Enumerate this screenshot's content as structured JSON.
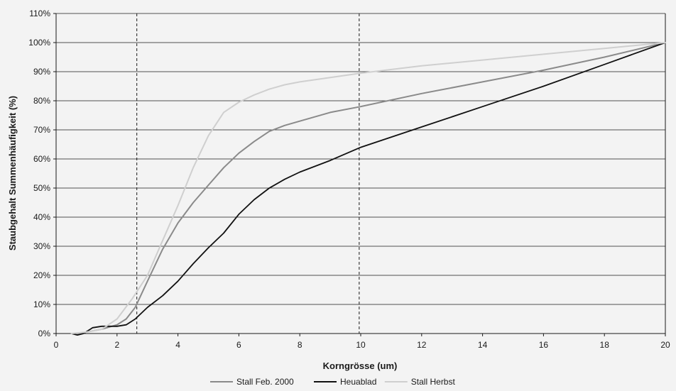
{
  "chart_data": {
    "type": "line",
    "title": "",
    "xlabel": "Korngrösse (um)",
    "ylabel": "Staubgehalt Summenhäufigkeit (%)",
    "xlim": [
      0,
      20
    ],
    "ylim": [
      0,
      110
    ],
    "x_ticks": [
      "0",
      "2",
      "4",
      "6",
      "8",
      "10",
      "12",
      "14",
      "16",
      "18",
      "20"
    ],
    "y_ticks": [
      "0%",
      "10%",
      "20%",
      "30%",
      "40%",
      "50%",
      "60%",
      "70%",
      "80%",
      "90%",
      "100%",
      "110%"
    ],
    "grid": "horizontal",
    "legend_position": "bottom",
    "reference_lines_x": [
      2.65,
      9.95
    ],
    "series": [
      {
        "name": "Stall Feb. 2000",
        "color": "#8a8a8a",
        "x": [
          0.5,
          0.8,
          1.0,
          1.5,
          2.0,
          2.3,
          2.6,
          3.0,
          3.5,
          4.0,
          4.5,
          5.0,
          5.5,
          6.0,
          6.5,
          7.0,
          7.5,
          8.0,
          9.0,
          10.0,
          12.0,
          14.0,
          16.0,
          18.0,
          20.0
        ],
        "y": [
          0,
          0,
          0.5,
          1.5,
          3,
          5,
          9,
          18,
          29,
          38,
          45,
          51,
          57,
          62,
          66,
          69.5,
          71.5,
          73,
          76,
          78,
          82.5,
          86.5,
          90.5,
          95,
          100
        ]
      },
      {
        "name": "Heuablad",
        "color": "#111111",
        "x": [
          0.5,
          0.7,
          0.9,
          1.2,
          1.5,
          2.0,
          2.3,
          2.6,
          3.0,
          3.5,
          4.0,
          4.5,
          5.0,
          5.5,
          6.0,
          6.5,
          7.0,
          7.5,
          8.0,
          9.0,
          10.0,
          12.0,
          14.0,
          16.0,
          18.0,
          20.0
        ],
        "y": [
          0,
          -0.5,
          0,
          2,
          2.5,
          2.5,
          3,
          5,
          9,
          13,
          18,
          24,
          29.5,
          34.5,
          41,
          46,
          50,
          53,
          55.5,
          59.5,
          64,
          71,
          78,
          85,
          92.5,
          100
        ]
      },
      {
        "name": "Stall Herbst",
        "color": "#cfcfcf",
        "x": [
          0.5,
          1.0,
          1.5,
          2.0,
          2.5,
          3.0,
          3.5,
          4.0,
          4.5,
          5.0,
          5.5,
          6.0,
          6.5,
          7.0,
          7.5,
          8.0,
          9.0,
          10.0,
          12.0,
          14.0,
          16.0,
          18.0,
          20.0
        ],
        "y": [
          0,
          0.5,
          1.5,
          5,
          12,
          20,
          32,
          44,
          57,
          68,
          76,
          79.5,
          82,
          84,
          85.5,
          86.5,
          88,
          89.5,
          92,
          94,
          96,
          98,
          100
        ]
      }
    ]
  }
}
